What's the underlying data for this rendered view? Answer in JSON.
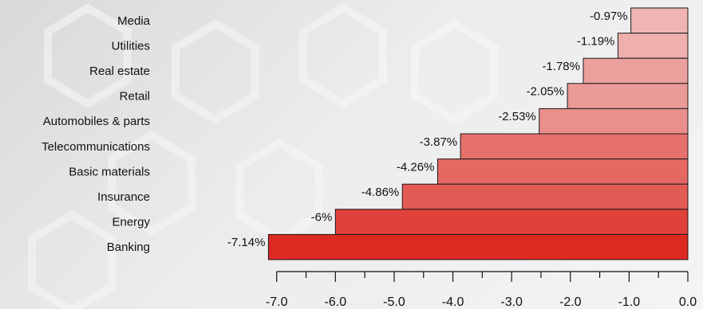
{
  "chart_data": {
    "type": "bar",
    "orientation": "horizontal",
    "categories": [
      "Media",
      "Utilities",
      "Real estate",
      "Retail",
      "Automobiles & parts",
      "Telecommunications",
      "Basic materials",
      "Insurance",
      "Energy",
      "Banking"
    ],
    "values": [
      -0.97,
      -1.19,
      -1.78,
      -2.05,
      -2.53,
      -3.87,
      -4.26,
      -4.86,
      -6,
      -7.14
    ],
    "value_labels": [
      "-0.97%",
      "-1.19%",
      "-1.78%",
      "-2.05%",
      "-2.53%",
      "-3.87%",
      "-4.26%",
      "-4.86%",
      "-6%",
      "-7.14%"
    ],
    "xlim": [
      -7.2,
      0
    ],
    "x_ticks": [
      -7.0,
      -6.0,
      -5.0,
      -4.0,
      -3.0,
      -2.0,
      -1.0,
      0.0
    ],
    "x_tick_labels": [
      "-7.0",
      "-6.0",
      "-5.0",
      "-4.0",
      "-3.0",
      "-2.0",
      "-1.0",
      "0.0"
    ],
    "grid": false,
    "colors": {
      "bar_min": "#f3d0d0",
      "bar_max": "#dc2a22",
      "bar_stroke": "#1a1a1a"
    }
  }
}
